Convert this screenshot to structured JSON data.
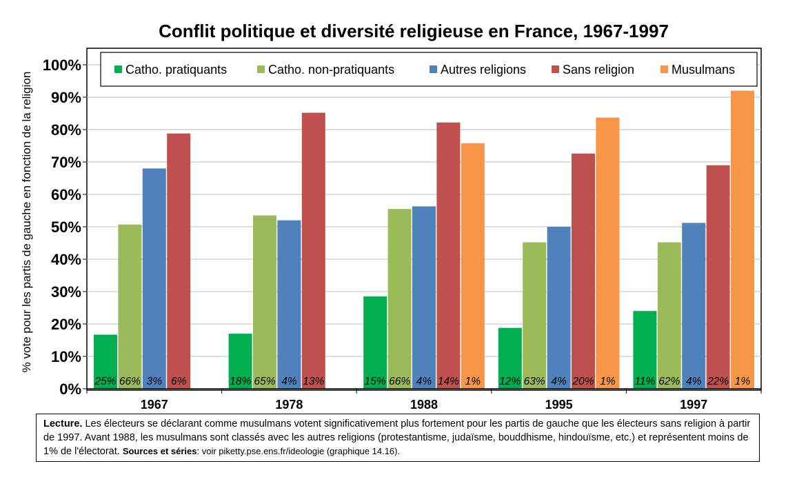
{
  "title": "Conflit politique et diversité religieuse en France, 1967-1997",
  "chart_data": {
    "type": "bar",
    "title": "Conflit politique et diversité religieuse en France, 1967-1997",
    "ylabel": "% vote pour les partis de gauche en fonction de la religion",
    "xlabel": "",
    "ylim": [
      0,
      1
    ],
    "yticks": [
      "0%",
      "10%",
      "20%",
      "30%",
      "40%",
      "50%",
      "60%",
      "70%",
      "80%",
      "90%",
      "100%"
    ],
    "categories": [
      "1967",
      "1978",
      "1988",
      "1995",
      "1997"
    ],
    "legend_position": "top",
    "grid": true,
    "series": [
      {
        "name": "Catho. pratiquants",
        "color": "#00b050",
        "values": [
          0.167,
          0.17,
          0.285,
          0.188,
          0.24
        ],
        "labels": [
          "25%",
          "18%",
          "15%",
          "12%",
          "11%"
        ]
      },
      {
        "name": "Catho. non-pratiquants",
        "color": "#9bbb59",
        "values": [
          0.507,
          0.535,
          0.555,
          0.452,
          0.452
        ],
        "labels": [
          "66%",
          "65%",
          "66%",
          "63%",
          "62%"
        ]
      },
      {
        "name": "Autres religions",
        "color": "#4f81bd",
        "values": [
          0.68,
          0.52,
          0.563,
          0.5,
          0.512
        ],
        "labels": [
          "3%",
          "4%",
          "4%",
          "4%",
          "4%"
        ]
      },
      {
        "name": "Sans religion",
        "color": "#c0504d",
        "values": [
          0.788,
          0.852,
          0.822,
          0.726,
          0.69
        ],
        "labels": [
          "6%",
          "13%",
          "14%",
          "20%",
          "22%"
        ]
      },
      {
        "name": "Musulmans",
        "color": "#f79646",
        "values": [
          null,
          null,
          0.758,
          0.837,
          0.92
        ],
        "labels": [
          null,
          null,
          "1%",
          "1%",
          "1%"
        ]
      }
    ]
  },
  "note": {
    "lead": "Lecture.",
    "text1": " Les électeurs se déclarant comme musulmans votent significativement plus fortement pour les partis de gauche que les électeurs sans religion à partir de 1997. Avant 1988, les musulmans sont classés avec les autres religions (protestantisme, judaïsme, bouddhisme, hindouïsme, etc.) et représentent moins de 1% de l'électorat. ",
    "sources_label": "Sources et séries",
    "sources_text": ": voir piketty.pse.ens.fr/ideologie (graphique 14.16)."
  }
}
